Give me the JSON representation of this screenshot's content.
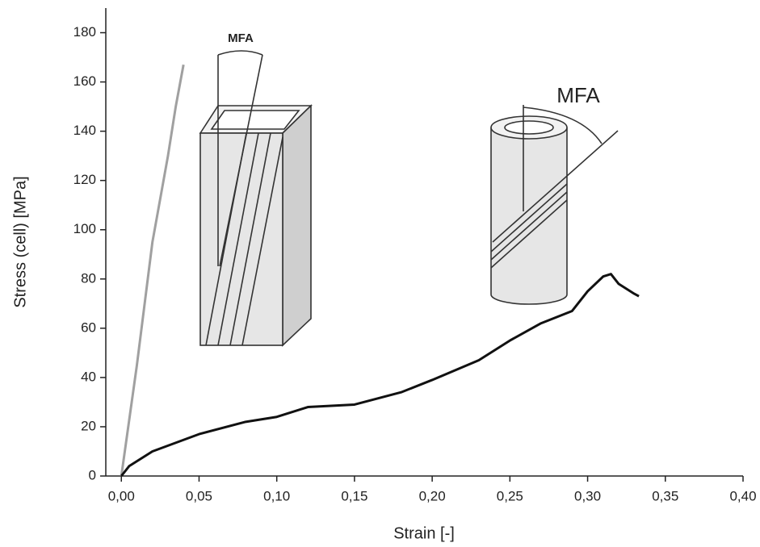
{
  "chart_data": {
    "type": "line",
    "xlabel": "Strain [-]",
    "ylabel": "Stress (cell) [MPa]",
    "annotations": [
      "MFA",
      "MFA"
    ],
    "xlim": [
      -0.01,
      0.4
    ],
    "ylim": [
      0,
      190
    ],
    "xticks": [
      {
        "value": 0,
        "label": "0,00"
      },
      {
        "value": 0.05,
        "label": "0,05"
      },
      {
        "value": 0.1,
        "label": "0,10"
      },
      {
        "value": 0.15,
        "label": "0,15"
      },
      {
        "value": 0.2,
        "label": "0,20"
      },
      {
        "value": 0.25,
        "label": "0,25"
      },
      {
        "value": 0.3,
        "label": "0,30"
      },
      {
        "value": 0.35,
        "label": "0,35"
      },
      {
        "value": 0.4,
        "label": "0,40"
      }
    ],
    "yticks": [
      0,
      20,
      40,
      60,
      80,
      100,
      120,
      140,
      160,
      180
    ],
    "grid": false,
    "series": [
      {
        "color": "#a0a0a0",
        "x": [
          0,
          0.01,
          0.02,
          0.03,
          0.035,
          0.04
        ],
        "values": [
          0,
          45,
          95,
          130,
          150,
          167
        ]
      },
      {
        "color": "#111111",
        "x": [
          0,
          0.005,
          0.02,
          0.05,
          0.08,
          0.1,
          0.12,
          0.15,
          0.18,
          0.2,
          0.23,
          0.25,
          0.27,
          0.29,
          0.3,
          0.31,
          0.315,
          0.32,
          0.33,
          0.333
        ],
        "values": [
          0,
          4,
          10,
          17,
          22,
          24,
          28,
          29,
          34,
          39,
          47,
          55,
          62,
          67,
          75,
          81,
          82,
          78,
          74,
          73
        ]
      }
    ]
  }
}
